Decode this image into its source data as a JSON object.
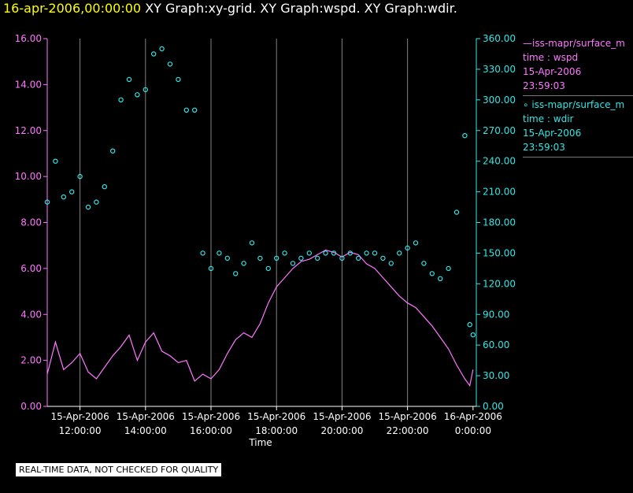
{
  "title": {
    "timestamp": "16-apr-2006,00:00:00",
    "graphs": "XY Graph:xy-grid.  XY Graph:wspd.  XY Graph:wdir."
  },
  "legend": {
    "wspd": {
      "name": "iss-mapr/surface_m",
      "var": "time : wspd",
      "date": "15-Apr-2006",
      "time": "23:59:03"
    },
    "wdir": {
      "name": "iss-mapr/surface_m",
      "var": "time : wdir",
      "date": "15-Apr-2006",
      "time": "23:59:03"
    }
  },
  "badge": "REAL-TIME DATA, NOT CHECKED FOR QUALITY",
  "colors": {
    "wspd": "#ff77ff",
    "wdir": "#33e6e6",
    "grid": "#bbbbbb",
    "axis": "#ffffff"
  },
  "chart_data": {
    "type": "line",
    "xlabel": "Time",
    "x_range": [
      11,
      24.1
    ],
    "x_ticks": [
      {
        "x": 12,
        "date": "15-Apr-2006",
        "time": "12:00:00"
      },
      {
        "x": 14,
        "date": "15-Apr-2006",
        "time": "14:00:00"
      },
      {
        "x": 16,
        "date": "15-Apr-2006",
        "time": "16:00:00"
      },
      {
        "x": 18,
        "date": "15-Apr-2006",
        "time": "18:00:00"
      },
      {
        "x": 20,
        "date": "15-Apr-2006",
        "time": "20:00:00"
      },
      {
        "x": 22,
        "date": "15-Apr-2006",
        "time": "22:00:00"
      },
      {
        "x": 24,
        "date": "16-Apr-2006",
        "time": "0:00:00"
      }
    ],
    "y_left": {
      "range": [
        0,
        16
      ],
      "ticks": [
        "0.00",
        "2.00",
        "4.00",
        "6.00",
        "8.00",
        "10.00",
        "12.00",
        "14.00",
        "16.00"
      ]
    },
    "y_right": {
      "range": [
        0,
        360
      ],
      "ticks": [
        "0.00",
        "30.00",
        "60.00",
        "90.00",
        "120.00",
        "150.00",
        "180.00",
        "210.00",
        "240.00",
        "270.00",
        "300.00",
        "330.00",
        "360.00"
      ]
    },
    "series": [
      {
        "name": "wspd",
        "style": "line",
        "axis": "left",
        "x": [
          11.0,
          11.25,
          11.5,
          11.75,
          12.0,
          12.25,
          12.5,
          12.75,
          13.0,
          13.25,
          13.5,
          13.75,
          14.0,
          14.25,
          14.5,
          14.75,
          15.0,
          15.25,
          15.5,
          15.75,
          16.0,
          16.25,
          16.5,
          16.75,
          17.0,
          17.25,
          17.5,
          17.75,
          18.0,
          18.25,
          18.5,
          18.75,
          19.0,
          19.25,
          19.5,
          19.75,
          20.0,
          20.25,
          20.5,
          20.75,
          21.0,
          21.25,
          21.5,
          21.75,
          22.0,
          22.25,
          22.5,
          22.75,
          23.0,
          23.25,
          23.5,
          23.75,
          23.9,
          24.0
        ],
        "values": [
          1.4,
          2.8,
          1.6,
          1.9,
          2.3,
          1.5,
          1.2,
          1.7,
          2.2,
          2.6,
          3.1,
          2.0,
          2.8,
          3.2,
          2.4,
          2.2,
          1.9,
          2.0,
          1.1,
          1.4,
          1.2,
          1.6,
          2.3,
          2.9,
          3.2,
          3.0,
          3.6,
          4.5,
          5.2,
          5.6,
          6.0,
          6.3,
          6.4,
          6.6,
          6.8,
          6.7,
          6.5,
          6.7,
          6.6,
          6.2,
          6.0,
          5.6,
          5.2,
          4.8,
          4.5,
          4.3,
          3.9,
          3.5,
          3.0,
          2.5,
          1.8,
          1.2,
          0.9,
          1.6
        ]
      },
      {
        "name": "wdir",
        "style": "markers",
        "axis": "right",
        "x": [
          11.0,
          11.25,
          11.5,
          11.75,
          12.0,
          12.25,
          12.5,
          12.75,
          13.0,
          13.25,
          13.5,
          13.75,
          14.0,
          14.25,
          14.5,
          14.75,
          15.0,
          15.25,
          15.5,
          15.75,
          16.0,
          16.25,
          16.5,
          16.75,
          17.0,
          17.25,
          17.5,
          17.75,
          18.0,
          18.25,
          18.5,
          18.75,
          19.0,
          19.25,
          19.5,
          19.75,
          20.0,
          20.25,
          20.5,
          20.75,
          21.0,
          21.25,
          21.5,
          21.75,
          22.0,
          22.25,
          22.5,
          22.75,
          23.0,
          23.25,
          23.5,
          23.75,
          23.9,
          24.0
        ],
        "values": [
          200,
          240,
          205,
          210,
          225,
          195,
          200,
          215,
          250,
          300,
          320,
          305,
          310,
          345,
          350,
          335,
          320,
          290,
          290,
          150,
          135,
          150,
          145,
          130,
          140,
          160,
          145,
          135,
          145,
          150,
          140,
          145,
          150,
          145,
          150,
          150,
          145,
          150,
          145,
          150,
          150,
          145,
          140,
          150,
          155,
          160,
          140,
          130,
          125,
          135,
          190,
          265,
          80,
          70
        ]
      }
    ]
  }
}
